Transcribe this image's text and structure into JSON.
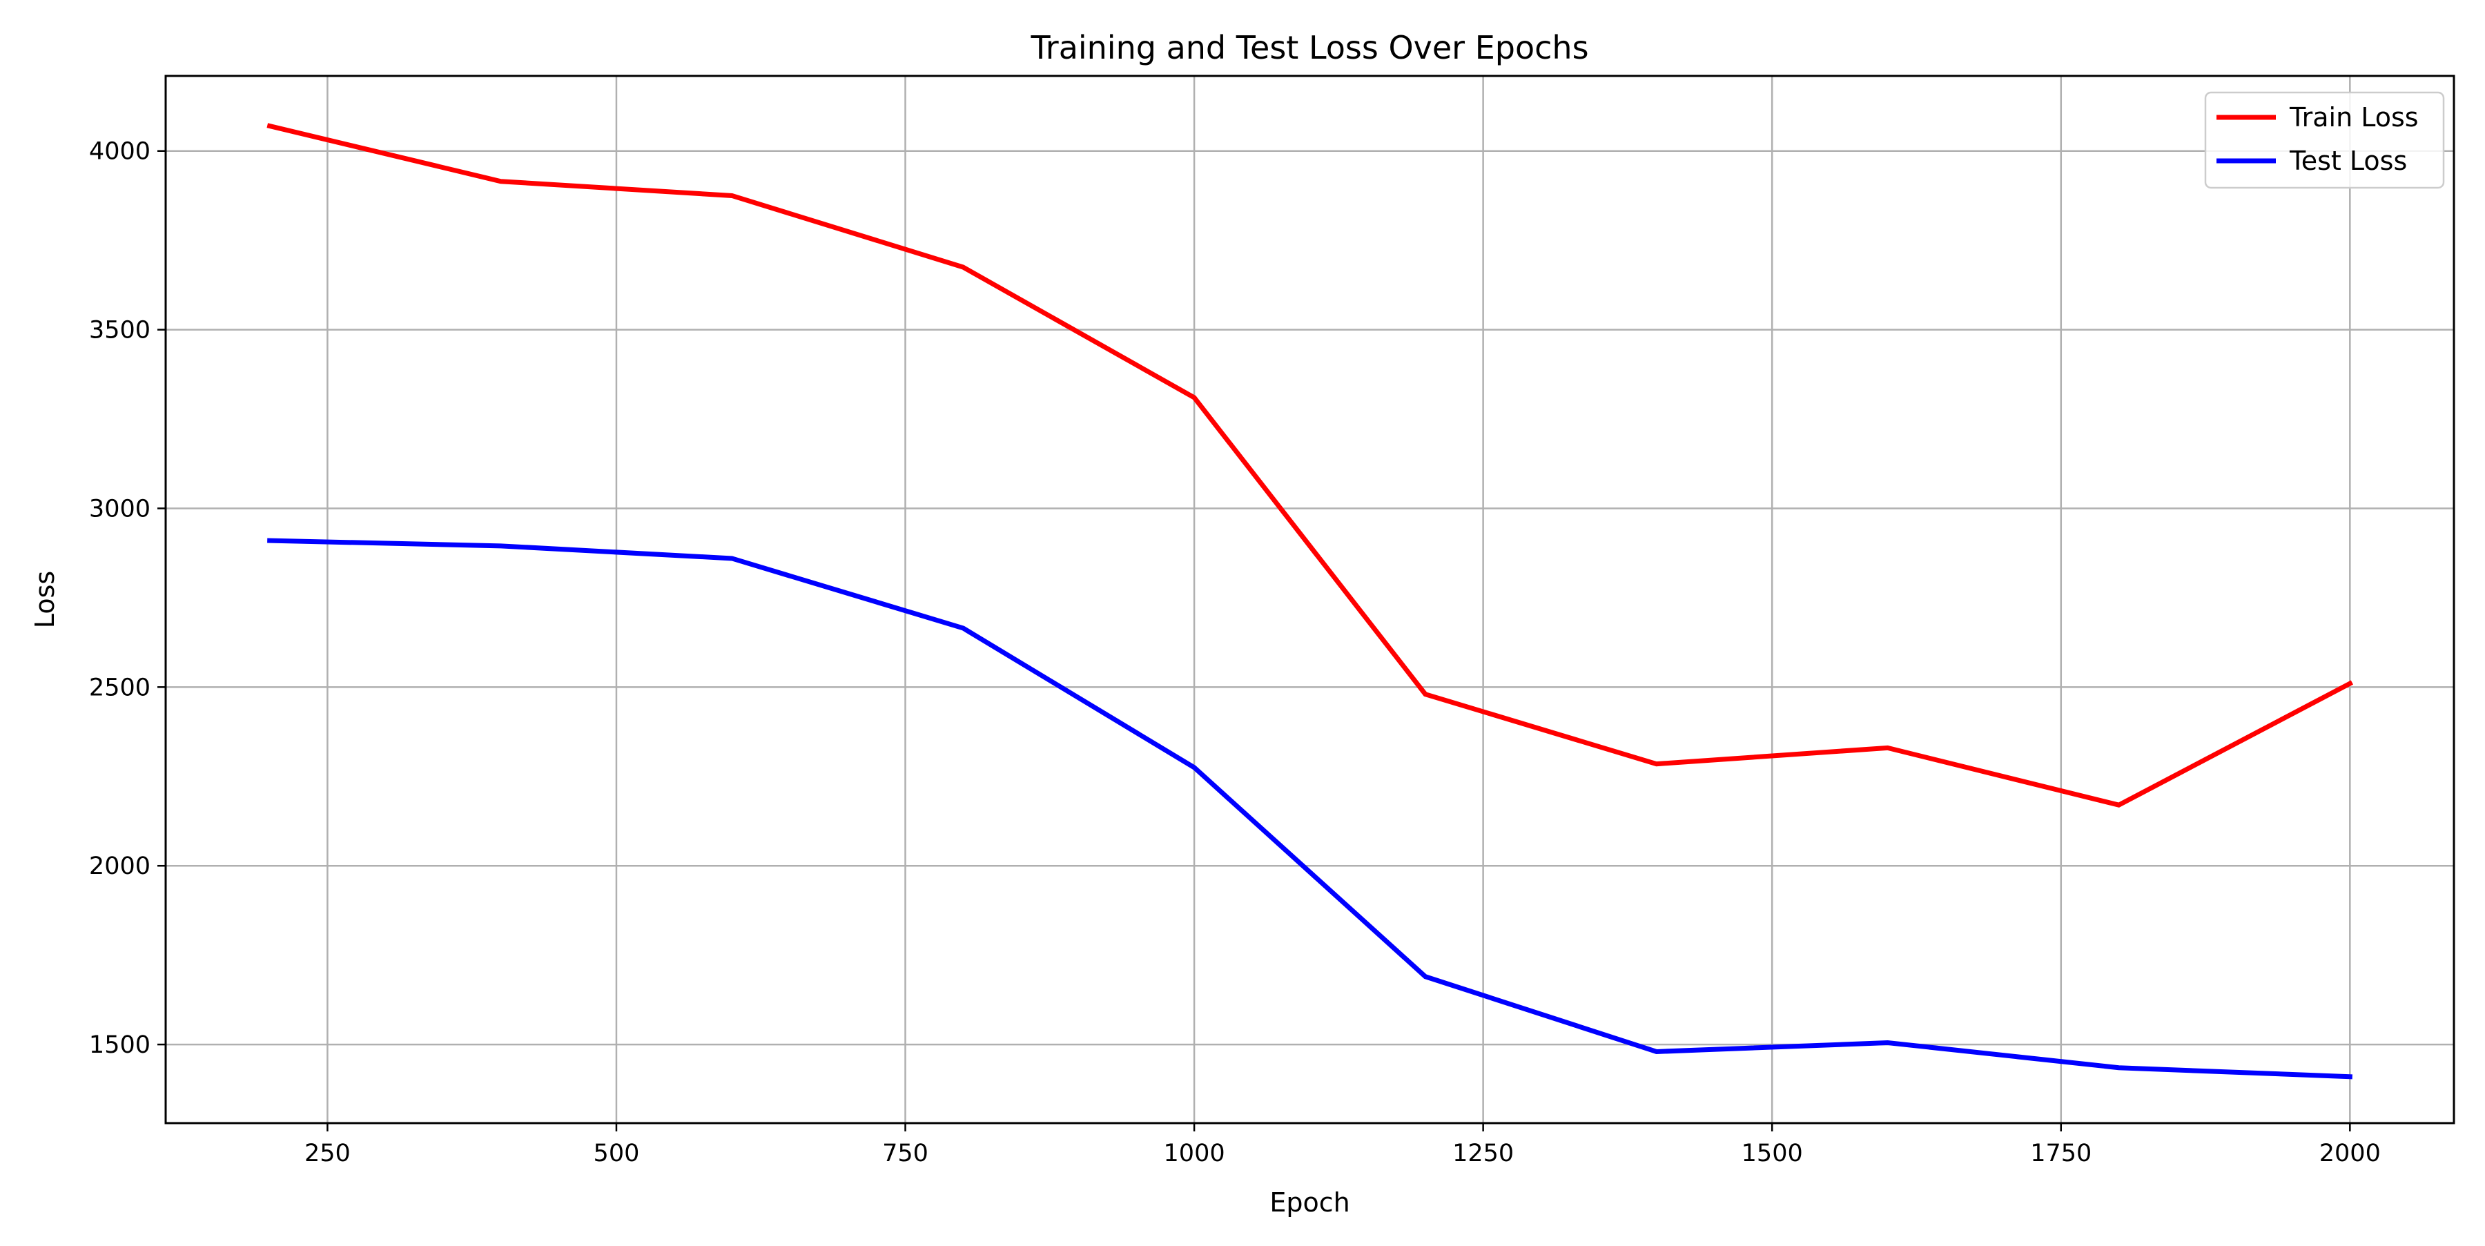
{
  "chart_data": {
    "type": "line",
    "title": "Training and Test Loss Over Epochs",
    "xlabel": "Epoch",
    "ylabel": "Loss",
    "x": [
      200,
      400,
      600,
      800,
      1000,
      1200,
      1400,
      1600,
      1800,
      2000
    ],
    "series": [
      {
        "name": "Train Loss",
        "color": "#ff0000",
        "values": [
          4070,
          3915,
          3875,
          3675,
          3310,
          2480,
          2285,
          2330,
          2170,
          2510
        ]
      },
      {
        "name": "Test Loss",
        "color": "#0000ff",
        "values": [
          2910,
          2895,
          2860,
          2665,
          2275,
          1690,
          1480,
          1505,
          1435,
          1410
        ]
      }
    ],
    "xlim": [
      110,
      2090
    ],
    "ylim": [
      1280,
      4210
    ],
    "xticks": [
      250,
      500,
      750,
      1000,
      1250,
      1500,
      1750,
      2000
    ],
    "yticks": [
      1500,
      2000,
      2500,
      3000,
      3500,
      4000
    ],
    "grid": true,
    "legend": "top-right"
  }
}
